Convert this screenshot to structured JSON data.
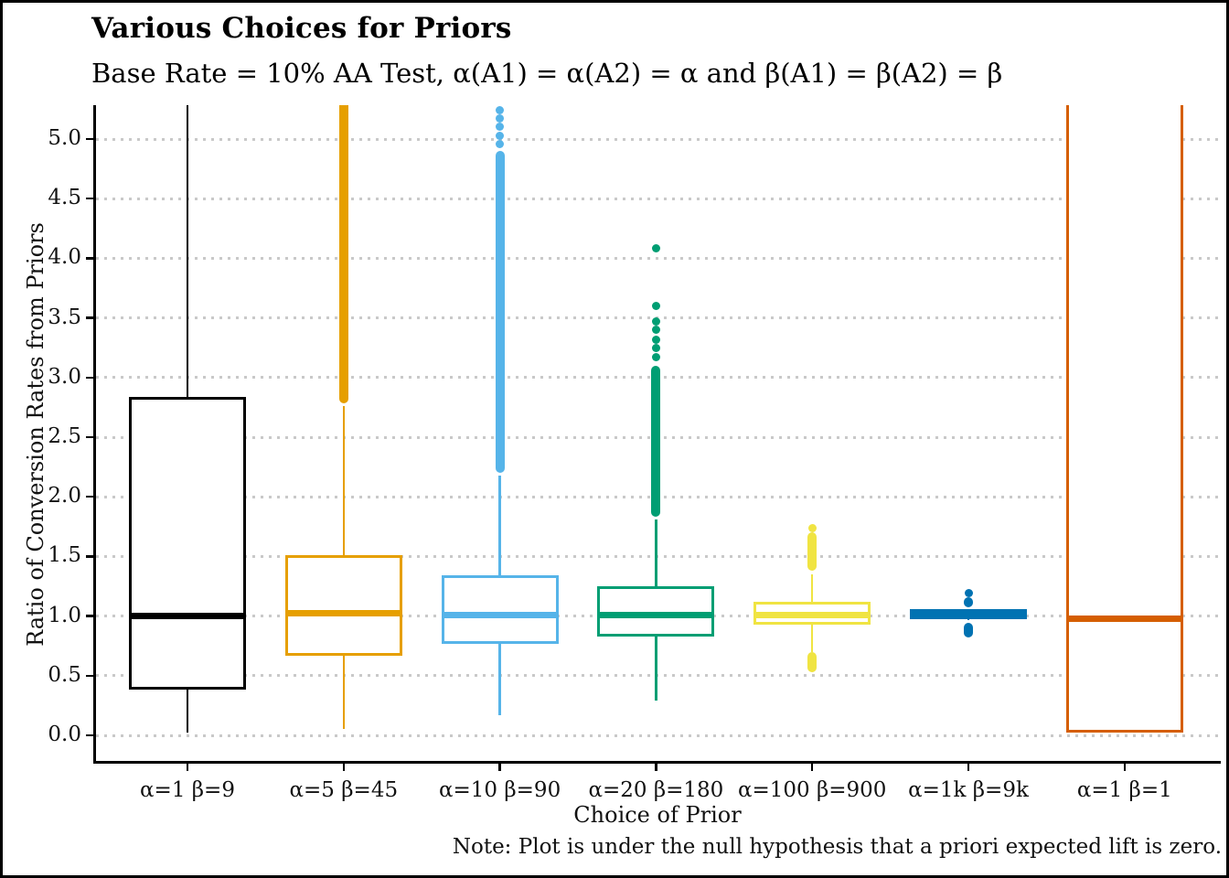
{
  "title": "Various Choices for Priors",
  "subtitle": "Base Rate = 10% AA Test, α(A1) = α(A2) = α and β(A1) = β(A2) = β",
  "note": "Note: Plot is under the null hypothesis that a priori expected lift is zero.",
  "chart_data": {
    "type": "boxplot",
    "title": "Various Choices for Priors",
    "subtitle": "Base Rate = 10% AA Test, α(A1) = α(A2) = α and β(A1) = β(A2) = β",
    "xlabel": "Choice of Prior",
    "ylabel": "Ratio of Conversion Rates from Priors",
    "caption": "Note: Plot is under the null hypothesis that a priori expected lift is zero.",
    "ylim": [
      -0.2,
      5.27
    ],
    "yticks": [
      0.0,
      0.5,
      1.0,
      1.5,
      2.0,
      2.5,
      3.0,
      3.5,
      4.0,
      4.5,
      5.0
    ],
    "grid": "horizontal-dotted",
    "legend": "none",
    "gridline_color": "#c9c9c9",
    "categories": [
      "α=1 β=9",
      "α=5 β=45",
      "α=10 β=90",
      "α=20 β=180",
      "α=100 β=900",
      "α=1k β=9k",
      "α=1 β=1"
    ],
    "series": [
      {
        "label": "α=1 β=9",
        "color": "#000000",
        "whisker_low": 0.02,
        "q1": 0.38,
        "median": 1.0,
        "q3": 2.84,
        "whisker_high": 5.6,
        "clipped_top": true,
        "outlier_bands": [],
        "outliers": []
      },
      {
        "label": "α=5 β=45",
        "color": "#E69F00",
        "whisker_low": 0.05,
        "q1": 0.67,
        "median": 1.02,
        "q3": 1.51,
        "whisker_high": 2.76,
        "clipped_top": true,
        "outlier_bands": [
          [
            2.78,
            5.6
          ]
        ],
        "outliers": []
      },
      {
        "label": "α=10 β=90",
        "color": "#56B4E9",
        "whisker_low": 0.17,
        "q1": 0.77,
        "median": 1.01,
        "q3": 1.34,
        "whisker_high": 2.18,
        "clipped_top": false,
        "outlier_bands": [
          [
            2.2,
            4.9
          ]
        ],
        "outliers": [
          4.96,
          5.03,
          5.1,
          5.17,
          5.24
        ]
      },
      {
        "label": "α=20 β=180",
        "color": "#009E73",
        "whisker_low": 0.29,
        "q1": 0.83,
        "median": 1.01,
        "q3": 1.25,
        "whisker_high": 1.81,
        "clipped_top": false,
        "outlier_bands": [
          [
            1.83,
            3.1
          ]
        ],
        "outliers": [
          3.17,
          3.25,
          3.32,
          3.4,
          3.47,
          3.6,
          4.08
        ]
      },
      {
        "label": "α=100 β=900",
        "color": "#F0E442",
        "whisker_low": 0.7,
        "q1": 0.93,
        "median": 1.01,
        "q3": 1.12,
        "whisker_high": 1.35,
        "clipped_top": false,
        "outlier_bands": [
          [
            1.38,
            1.7
          ],
          [
            0.53,
            0.7
          ]
        ],
        "outliers": [
          1.74
        ]
      },
      {
        "label": "α=1k β=9k",
        "color": "#0072B2",
        "whisker_low": 0.97,
        "q1": 0.975,
        "median": 1.01,
        "q3": 1.055,
        "whisker_high": 1.06,
        "clipped_top": false,
        "outlier_bands": [
          [
            1.07,
            1.16
          ],
          [
            0.82,
            0.945
          ]
        ],
        "outliers": [
          1.19
        ]
      },
      {
        "label": "α=1 β=1",
        "color": "#D55E00",
        "whisker_low": 0.02,
        "q1": 0.02,
        "median": 0.98,
        "q3": 5.6,
        "whisker_high": 5.6,
        "clipped_top": true,
        "outlier_bands": [],
        "outliers": []
      }
    ]
  }
}
